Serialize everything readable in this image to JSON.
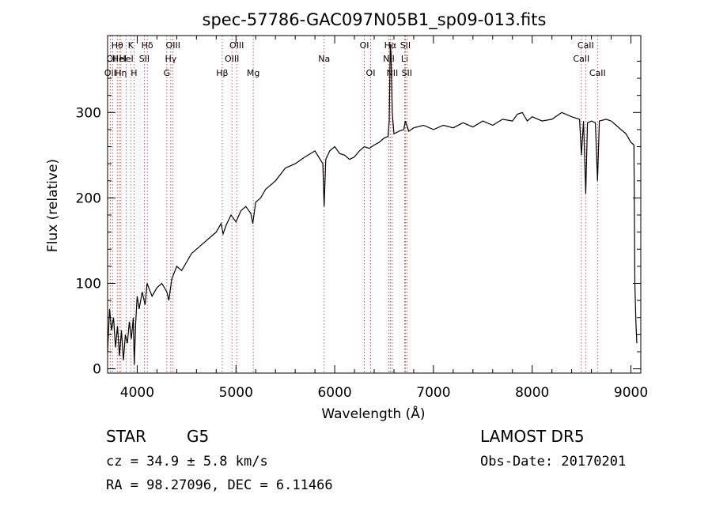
{
  "chart_data": {
    "type": "line",
    "title": "spec-57786-GAC097N05B1_sp09-013.fits",
    "xlabel": "Wavelength (Å)",
    "ylabel": "Flux (relative)",
    "xlim": [
      3700,
      9100
    ],
    "ylim": [
      -5,
      390
    ],
    "xticks": [
      4000,
      5000,
      6000,
      7000,
      8000,
      9000
    ],
    "yticks": [
      0,
      100,
      200,
      300
    ],
    "line_color": "#000000",
    "marker_color": "#b03030",
    "grid": false,
    "series": [
      {
        "points": [
          [
            3700,
            20
          ],
          [
            3720,
            70
          ],
          [
            3740,
            45
          ],
          [
            3760,
            60
          ],
          [
            3780,
            25
          ],
          [
            3800,
            50
          ],
          [
            3820,
            15
          ],
          [
            3840,
            45
          ],
          [
            3860,
            10
          ],
          [
            3880,
            40
          ],
          [
            3900,
            30
          ],
          [
            3920,
            55
          ],
          [
            3940,
            35
          ],
          [
            3960,
            60
          ],
          [
            3970,
            5
          ],
          [
            3985,
            55
          ],
          [
            4000,
            85
          ],
          [
            4020,
            70
          ],
          [
            4050,
            90
          ],
          [
            4080,
            75
          ],
          [
            4100,
            100
          ],
          [
            4150,
            85
          ],
          [
            4200,
            95
          ],
          [
            4250,
            100
          ],
          [
            4300,
            90
          ],
          [
            4320,
            80
          ],
          [
            4350,
            105
          ],
          [
            4400,
            120
          ],
          [
            4450,
            115
          ],
          [
            4500,
            125
          ],
          [
            4550,
            135
          ],
          [
            4600,
            140
          ],
          [
            4650,
            145
          ],
          [
            4700,
            150
          ],
          [
            4750,
            155
          ],
          [
            4800,
            160
          ],
          [
            4850,
            170
          ],
          [
            4870,
            158
          ],
          [
            4900,
            168
          ],
          [
            4950,
            180
          ],
          [
            5000,
            172
          ],
          [
            5050,
            185
          ],
          [
            5100,
            190
          ],
          [
            5150,
            182
          ],
          [
            5170,
            170
          ],
          [
            5200,
            195
          ],
          [
            5250,
            200
          ],
          [
            5300,
            210
          ],
          [
            5400,
            220
          ],
          [
            5500,
            235
          ],
          [
            5600,
            240
          ],
          [
            5700,
            248
          ],
          [
            5800,
            255
          ],
          [
            5880,
            240
          ],
          [
            5893,
            190
          ],
          [
            5910,
            245
          ],
          [
            5950,
            255
          ],
          [
            6000,
            260
          ],
          [
            6050,
            252
          ],
          [
            6100,
            250
          ],
          [
            6150,
            245
          ],
          [
            6200,
            248
          ],
          [
            6250,
            255
          ],
          [
            6300,
            260
          ],
          [
            6350,
            258
          ],
          [
            6400,
            262
          ],
          [
            6450,
            265
          ],
          [
            6500,
            270
          ],
          [
            6540,
            272
          ],
          [
            6552,
            290
          ],
          [
            6563,
            380
          ],
          [
            6570,
            370
          ],
          [
            6583,
            300
          ],
          [
            6600,
            275
          ],
          [
            6650,
            278
          ],
          [
            6700,
            280
          ],
          [
            6716,
            290
          ],
          [
            6730,
            285
          ],
          [
            6750,
            278
          ],
          [
            6800,
            282
          ],
          [
            6900,
            285
          ],
          [
            7000,
            280
          ],
          [
            7100,
            285
          ],
          [
            7200,
            282
          ],
          [
            7300,
            288
          ],
          [
            7400,
            283
          ],
          [
            7500,
            290
          ],
          [
            7600,
            285
          ],
          [
            7700,
            292
          ],
          [
            7800,
            290
          ],
          [
            7850,
            298
          ],
          [
            7900,
            300
          ],
          [
            7950,
            290
          ],
          [
            8000,
            295
          ],
          [
            8100,
            290
          ],
          [
            8200,
            292
          ],
          [
            8300,
            300
          ],
          [
            8400,
            295
          ],
          [
            8480,
            292
          ],
          [
            8498,
            250
          ],
          [
            8520,
            290
          ],
          [
            8542,
            205
          ],
          [
            8560,
            288
          ],
          [
            8600,
            290
          ],
          [
            8640,
            288
          ],
          [
            8662,
            220
          ],
          [
            8680,
            290
          ],
          [
            8750,
            292
          ],
          [
            8800,
            290
          ],
          [
            8850,
            285
          ],
          [
            8900,
            280
          ],
          [
            8950,
            275
          ],
          [
            9000,
            265
          ],
          [
            9030,
            262
          ],
          [
            9040,
            100
          ],
          [
            9050,
            55
          ],
          [
            9060,
            30
          ]
        ]
      }
    ],
    "line_markers": [
      {
        "wl": 3727,
        "label": "OII",
        "row": 2
      },
      {
        "wl": 3750,
        "label": "OII",
        "row": 1
      },
      {
        "wl": 3798,
        "label": "Hθ",
        "row": 0
      },
      {
        "wl": 3820,
        "label": "HeI",
        "row": 1
      },
      {
        "wl": 3835,
        "label": "Hη",
        "row": 2
      },
      {
        "wl": 3889,
        "label": "HeI",
        "row": 1
      },
      {
        "wl": 3934,
        "label": "K",
        "row": 0
      },
      {
        "wl": 3968,
        "label": "H",
        "row": 2
      },
      {
        "wl": 4072,
        "label": "SII",
        "row": 1
      },
      {
        "wl": 4102,
        "label": "Hδ",
        "row": 0
      },
      {
        "wl": 4300,
        "label": "G",
        "row": 2
      },
      {
        "wl": 4340,
        "label": "Hγ",
        "row": 1
      },
      {
        "wl": 4363,
        "label": "OIII",
        "row": 0
      },
      {
        "wl": 4861,
        "label": "Hβ",
        "row": 2
      },
      {
        "wl": 4959,
        "label": "OIII",
        "row": 1
      },
      {
        "wl": 5007,
        "label": "OIII",
        "row": 0
      },
      {
        "wl": 5175,
        "label": "Mg",
        "row": 2
      },
      {
        "wl": 5893,
        "label": "Na",
        "row": 1
      },
      {
        "wl": 6300,
        "label": "OI",
        "row": 0
      },
      {
        "wl": 6364,
        "label": "OI",
        "row": 2
      },
      {
        "wl": 6548,
        "label": "NII",
        "row": 1
      },
      {
        "wl": 6563,
        "label": "Hα",
        "row": 0
      },
      {
        "wl": 6583,
        "label": "NII",
        "row": 2
      },
      {
        "wl": 6708,
        "label": "Li",
        "row": 1
      },
      {
        "wl": 6716,
        "label": "SII",
        "row": 0
      },
      {
        "wl": 6731,
        "label": "SII",
        "row": 2
      },
      {
        "wl": 8498,
        "label": "CaII",
        "row": 1
      },
      {
        "wl": 8542,
        "label": "CaII",
        "row": 0
      },
      {
        "wl": 8662,
        "label": "CaII",
        "row": 2
      }
    ]
  },
  "info": {
    "class": "STAR",
    "subclass": "G5",
    "survey": "LAMOST DR5",
    "redshift": "cz = 34.9 ± 5.8 km/s",
    "obs_date": "Obs-Date: 20170201",
    "coords": "RA =  98.27096, DEC =   6.11466"
  }
}
